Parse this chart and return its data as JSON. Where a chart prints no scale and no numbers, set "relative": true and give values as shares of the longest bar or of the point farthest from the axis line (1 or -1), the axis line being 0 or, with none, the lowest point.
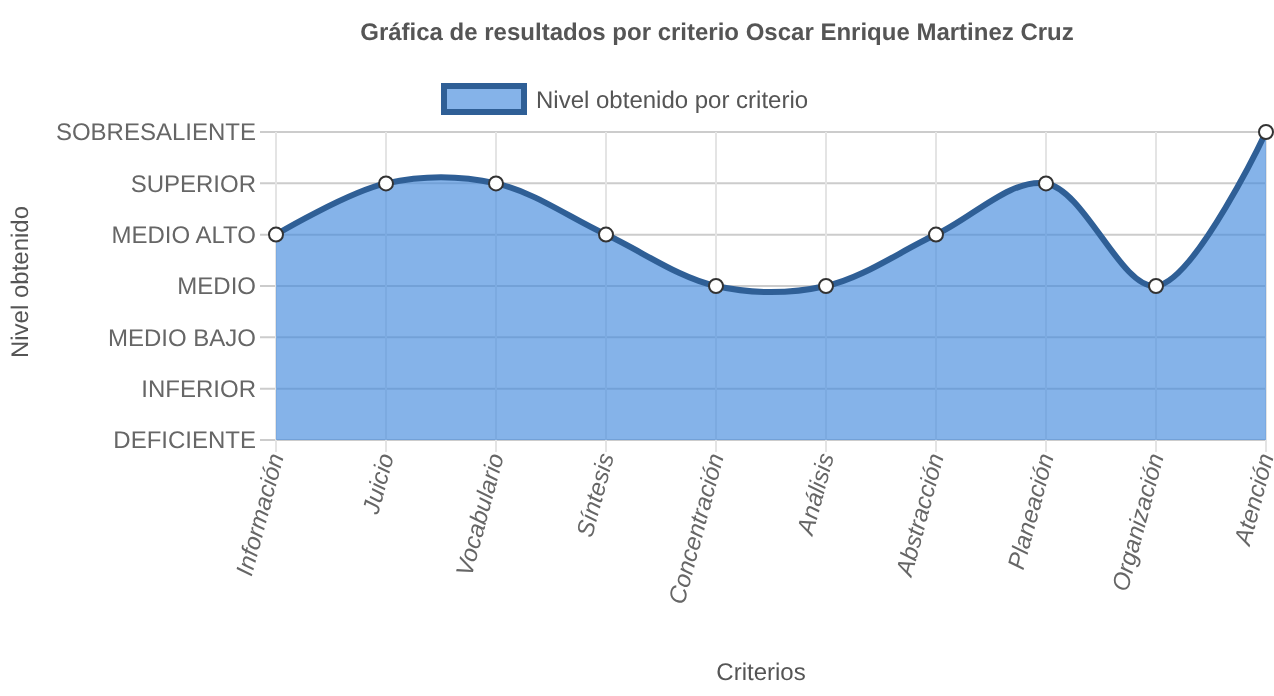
{
  "chart_data": {
    "type": "area",
    "title": "Gráfica de resultados por criterio Oscar Enrique Martinez Cruz",
    "xlabel": "Criterios",
    "categories": [
      "Información",
      "Juicio",
      "Vocabulario",
      "Síntesis",
      "Concentración",
      "Análisis",
      "Abstracción",
      "Planeación",
      "Organización",
      "Atención"
    ],
    "series": [
      {
        "name": "Nivel obtenido por criterio",
        "color": "#2f5f96",
        "values": [
          0.667,
          0.833,
          0.833,
          0.667,
          0.5,
          0.5,
          0.667,
          0.833,
          0.5,
          1
        ]
      }
    ],
    "relative": true,
    "annotations": [
      "Nivel obtenido",
      "DEFICIENTE",
      "INFERIOR",
      "MEDIO BAJO",
      "MEDIO",
      "MEDIO ALTO",
      "SUPERIOR",
      "SOBRESALIENTE"
    ],
    "grid": true,
    "legend": "top",
    "marker": "circle",
    "line_style": "solid"
  }
}
